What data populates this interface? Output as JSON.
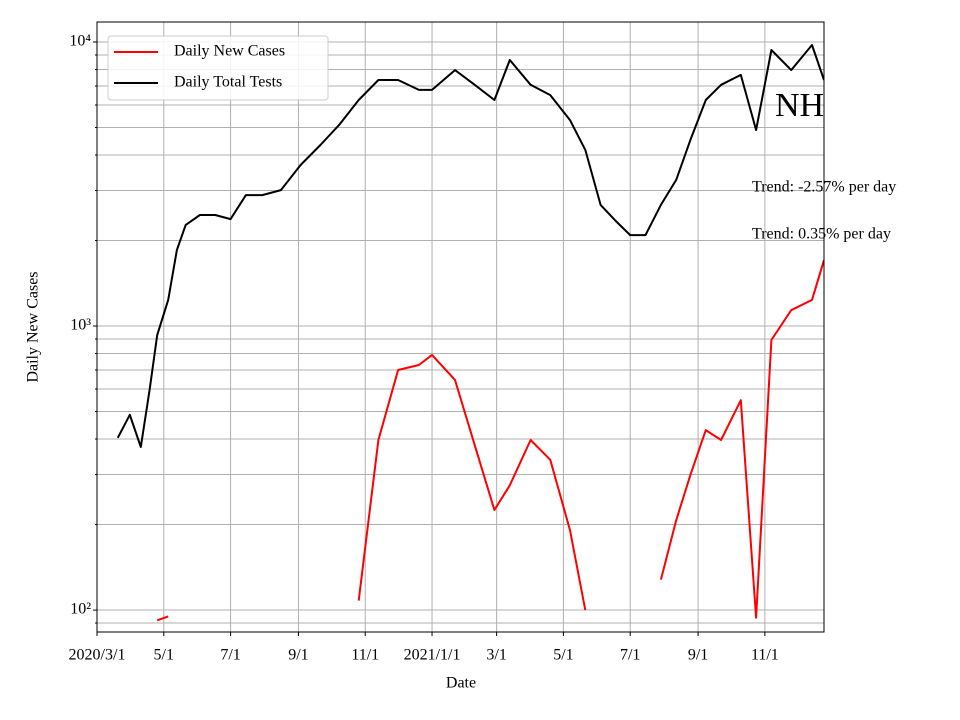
{
  "chart_data": {
    "type": "line",
    "x_label": "Date",
    "y_label": "Daily New Cases",
    "log_scale": true,
    "grid": true,
    "legend": "upper left",
    "annotations": [
      "NH",
      "Trend: -2.57% per day",
      "Trend: 0.35% per day"
    ],
    "x": [
      "2020-03-20",
      "2020-03-31",
      "2020-04-10",
      "2020-04-18",
      "2020-04-25",
      "2020-05-05",
      "2020-05-13",
      "2020-05-21",
      "2020-06-03",
      "2020-06-17",
      "2020-07-01",
      "2020-07-15",
      "2020-07-30",
      "2020-08-16",
      "2020-09-03",
      "2020-09-21",
      "2020-10-08",
      "2020-10-26",
      "2020-11-13",
      "2020-12-01",
      "2020-12-20",
      "2021-01-01",
      "2021-01-22",
      "2021-02-09",
      "2021-02-27",
      "2021-03-13",
      "2021-04-01",
      "2021-04-19",
      "2021-05-07",
      "2021-05-21",
      "2021-06-04",
      "2021-06-17",
      "2021-07-01",
      "2021-07-15",
      "2021-07-29",
      "2021-08-12",
      "2021-08-25",
      "2021-09-08",
      "2021-09-22",
      "2021-10-10",
      "2021-10-24",
      "2021-11-07",
      "2021-11-25",
      "2021-12-14",
      "2021-12-25"
    ],
    "series": [
      {
        "name": "Daily New Cases",
        "color": "#ff0000",
        "values": [
          null,
          null,
          null,
          null,
          92,
          95,
          null,
          null,
          null,
          null,
          null,
          null,
          null,
          null,
          null,
          null,
          null,
          108,
          397,
          700,
          729,
          791,
          646,
          381,
          225,
          275,
          397,
          338,
          191,
          100,
          null,
          null,
          null,
          null,
          128,
          207,
          299,
          430,
          397,
          548,
          94,
          893,
          1137,
          1236,
          1706
        ]
      },
      {
        "name": "Daily Total Tests",
        "color": "#000000",
        "values": [
          404,
          487,
          375,
          596,
          929,
          1236,
          1854,
          2270,
          2460,
          2460,
          2380,
          2890,
          2890,
          3010,
          3690,
          4340,
          5100,
          6250,
          7350,
          7350,
          6780,
          6780,
          7960,
          7070,
          6250,
          8640,
          7070,
          6500,
          5310,
          4170,
          2670,
          2360,
          2090,
          2090,
          2670,
          3270,
          4520,
          6250,
          7070,
          7660,
          4900,
          9370,
          7960,
          9760,
          7350
        ]
      }
    ],
    "xlim": [
      "2020-03-01",
      "2021-12-25"
    ],
    "xticks": [
      {
        "value": "2020-03-01",
        "label": "2020/3/1"
      },
      {
        "value": "2020-05-01",
        "label": "5/1"
      },
      {
        "value": "2020-07-01",
        "label": "7/1"
      },
      {
        "value": "2020-09-01",
        "label": "9/1"
      },
      {
        "value": "2020-11-01",
        "label": "11/1"
      },
      {
        "value": "2021-01-01",
        "label": "2021/1/1"
      },
      {
        "value": "2021-03-01",
        "label": "3/1"
      },
      {
        "value": "2021-05-01",
        "label": "5/1"
      },
      {
        "value": "2021-07-01",
        "label": "7/1"
      },
      {
        "value": "2021-09-01",
        "label": "9/1"
      },
      {
        "value": "2021-11-01",
        "label": "11/1"
      }
    ],
    "ylim": [
      83.7,
      11760
    ],
    "yticks": [
      {
        "value": 100,
        "label": "10²"
      },
      {
        "value": 1000,
        "label": "10³"
      },
      {
        "value": 10000,
        "label": "10⁴"
      }
    ],
    "yminorticks": [
      90,
      200,
      300,
      400,
      500,
      600,
      700,
      800,
      900,
      2000,
      3000,
      4000,
      5000,
      6000,
      7000,
      8000,
      9000
    ]
  }
}
